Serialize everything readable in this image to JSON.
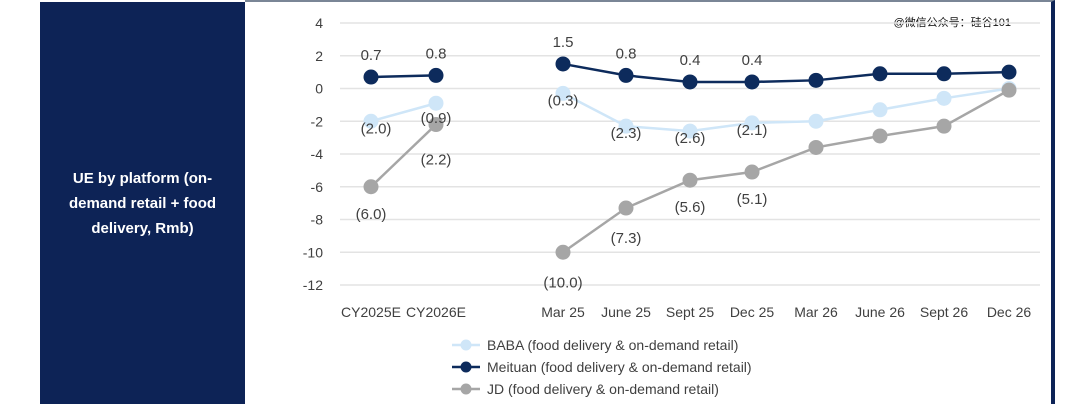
{
  "side_title": "UE by platform (on-demand retail + food delivery, Rmb)",
  "watermark": "@微信公众号：硅谷101",
  "chart_data": {
    "type": "line",
    "categories": [
      "CY2025E",
      "CY2026E",
      "Mar 25",
      "June 25",
      "Sept 25",
      "Dec 25",
      "Mar 26",
      "June 26",
      "Sept 26",
      "Dec 26"
    ],
    "ylim": [
      -12,
      4
    ],
    "yticks": [
      4,
      2,
      0,
      -2,
      -4,
      -6,
      -8,
      -10,
      -12
    ],
    "grid": true,
    "legend_position": "bottom",
    "series": [
      {
        "name": "BABA (food delivery & on-demand retail)",
        "color": "#cfe6f8",
        "values": [
          -2.0,
          -0.9,
          -0.3,
          -2.3,
          -2.6,
          -2.1,
          -2.0,
          -1.3,
          -0.6,
          0.0
        ],
        "labels": [
          "(2.0)",
          "(0.9)",
          "(0.3)",
          "(2.3)",
          "(2.6)",
          "(2.1)",
          null,
          null,
          null,
          null
        ]
      },
      {
        "name": "Meituan (food delivery & on-demand retail)",
        "color": "#0d2b5c",
        "values": [
          0.7,
          0.8,
          1.5,
          0.8,
          0.4,
          0.4,
          0.5,
          0.9,
          0.9,
          1.0
        ],
        "labels": [
          "0.7",
          "0.8",
          "1.5",
          "0.8",
          "0.4",
          "0.4",
          null,
          null,
          null,
          null
        ]
      },
      {
        "name": "JD (food delivery & on-demand retail)",
        "color": "#a6a6a6",
        "values": [
          -6.0,
          -2.2,
          -10.0,
          -7.3,
          -5.6,
          -5.1,
          -3.6,
          -2.9,
          -2.3,
          -0.1
        ],
        "labels": [
          "(6.0)",
          "(2.2)",
          "(10.0)",
          "(7.3)",
          "(5.6)",
          "(5.1)",
          null,
          null,
          null,
          null
        ]
      }
    ]
  }
}
